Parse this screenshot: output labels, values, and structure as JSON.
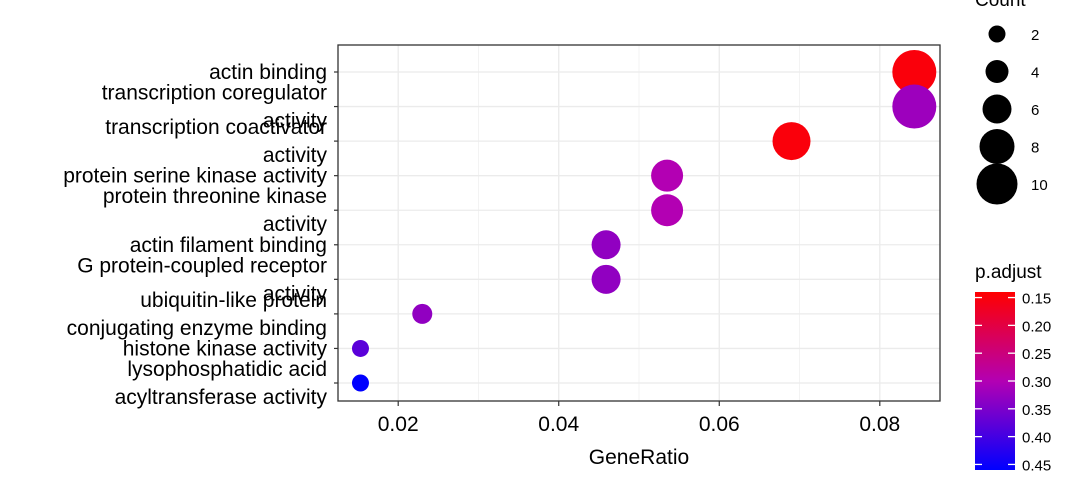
{
  "chart_data": {
    "type": "scatter",
    "xlabel": "GeneRatio",
    "xlim": [
      0.0125,
      0.0875
    ],
    "x_ticks": [
      "0.02",
      "0.04",
      "0.06",
      "0.08"
    ],
    "x_tick_values": [
      0.02,
      0.04,
      0.06,
      0.08
    ],
    "grid": true,
    "points": [
      {
        "label_lines": [
          "actin binding"
        ],
        "x": 0.0843,
        "count": 11,
        "p_adjust": 0.15
      },
      {
        "label_lines": [
          "transcription coregulator",
          "activity"
        ],
        "x": 0.0843,
        "count": 11,
        "p_adjust": 0.32
      },
      {
        "label_lines": [
          "transcription coactivator",
          "activity"
        ],
        "x": 0.069,
        "count": 9,
        "p_adjust": 0.15
      },
      {
        "label_lines": [
          "protein serine kinase activity"
        ],
        "x": 0.0535,
        "count": 7,
        "p_adjust": 0.3
      },
      {
        "label_lines": [
          "protein threonine kinase",
          "activity"
        ],
        "x": 0.0535,
        "count": 7,
        "p_adjust": 0.3
      },
      {
        "label_lines": [
          "actin filament binding"
        ],
        "x": 0.0459,
        "count": 6,
        "p_adjust": 0.33
      },
      {
        "label_lines": [
          "G protein-coupled receptor",
          "activity"
        ],
        "x": 0.0459,
        "count": 6,
        "p_adjust": 0.33
      },
      {
        "label_lines": [
          "ubiquitin-like protein",
          "conjugating enzyme binding"
        ],
        "x": 0.023,
        "count": 3,
        "p_adjust": 0.33
      },
      {
        "label_lines": [
          "histone kinase activity"
        ],
        "x": 0.0153,
        "count": 2,
        "p_adjust": 0.38
      },
      {
        "label_lines": [
          "lysophosphatidic acid",
          "acyltransferase activity"
        ],
        "x": 0.0153,
        "count": 2,
        "p_adjust": 0.46
      }
    ],
    "legend_count": {
      "title": "Count",
      "labels": [
        "2",
        "4",
        "6",
        "8",
        "10"
      ],
      "values": [
        2,
        4,
        6,
        8,
        10
      ]
    },
    "legend_padjust": {
      "title": "p.adjust",
      "labels": [
        "0.15",
        "0.20",
        "0.25",
        "0.30",
        "0.35",
        "0.40",
        "0.45"
      ],
      "values": [
        0.15,
        0.2,
        0.25,
        0.3,
        0.35,
        0.4,
        0.45
      ],
      "range": [
        0.14,
        0.46
      ],
      "colors": {
        "low": "#FF0000",
        "mid": "#B300B3",
        "high": "#0000FF"
      }
    }
  }
}
